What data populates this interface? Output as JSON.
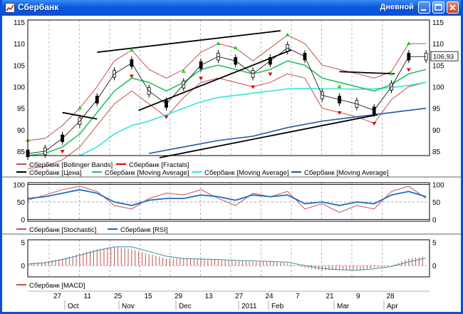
{
  "window": {
    "title": "Сбербанк",
    "period": "Дневной"
  },
  "panels": {
    "price": {
      "y_ticks": [
        85,
        90,
        95,
        100,
        105,
        110,
        115
      ],
      "y_range": [
        84,
        115.5
      ],
      "last_price": "106,93"
    },
    "stochastic_rsi": {
      "y_ticks": [
        0,
        50,
        100
      ]
    },
    "macd": {
      "y_ticks": [
        0,
        5
      ]
    }
  },
  "legend": {
    "row1": [
      {
        "label": "Сбербанк [Bollinger Bands]",
        "color": "#c0504d"
      },
      {
        "label": "Сбербанк [Fractals]",
        "color": "#e00000"
      }
    ],
    "row2": [
      {
        "label": "Сбербанк [Цена]",
        "color": "#000000"
      },
      {
        "label": "Сбербанк [Moving Average]",
        "color": "#26c060"
      },
      {
        "label": "Сбербанк [Moving Average]",
        "color": "#33e6d9"
      },
      {
        "label": "Сбербанк [Moving Average]",
        "color": "#1e5aa0"
      }
    ],
    "osc": [
      {
        "label": "Сбербанк [Stochastic]",
        "color": "#c0504d"
      },
      {
        "label": "Сбербанк [RSI]",
        "color": "#1f6fbf"
      }
    ],
    "macd": [
      {
        "label": "Сбербанк [MACD]",
        "color": "#c0504d"
      }
    ]
  },
  "x_axis": {
    "day_labels": [
      "27",
      "11",
      "25",
      "15",
      "29",
      "13",
      "27",
      "24",
      "7",
      "21",
      "9",
      "28"
    ],
    "month_labels": [
      "Oct",
      "Nov",
      "Dec",
      "2011",
      "Feb",
      "Mar",
      "Apr"
    ]
  },
  "chart_data": {
    "type": "line",
    "title": "",
    "series": [
      {
        "name": "Сбербанк [Цена]",
        "x": [
          0,
          5,
          10,
          15,
          20,
          25,
          30,
          35,
          40,
          45,
          50,
          55,
          60,
          65,
          70,
          75,
          80,
          85,
          90,
          95,
          100,
          105,
          110,
          115
        ],
        "values": [
          84.5,
          85,
          88,
          92,
          97,
          103,
          105.5,
          99,
          96,
          100.5,
          105,
          107,
          106,
          103,
          106,
          109,
          107,
          98,
          97,
          96,
          94.5,
          100,
          107,
          107
        ]
      },
      {
        "name": "Сбербанк [Moving Average]",
        "x": [
          0,
          5,
          10,
          15,
          20,
          25,
          30,
          35,
          40,
          45,
          50,
          55,
          60,
          65,
          70,
          75,
          80,
          85,
          90,
          95,
          100,
          105,
          110,
          115
        ],
        "values": [
          84,
          84.5,
          86,
          89,
          94,
          99,
          102,
          101,
          99,
          101,
          104,
          105,
          104,
          103,
          104,
          106,
          105,
          102,
          101,
          100,
          99,
          100.5,
          103,
          104
        ]
      },
      {
        "name": "Сбербанк [Moving Average]",
        "x": [
          15,
          20,
          25,
          30,
          35,
          40,
          45,
          50,
          55,
          60,
          65,
          70,
          75,
          80,
          85,
          90,
          95,
          100,
          105,
          110,
          115
        ],
        "values": [
          84,
          86,
          89,
          91,
          92,
          93.5,
          95,
          96.5,
          97.5,
          98,
          98.5,
          99,
          99.5,
          99.6,
          99.5,
          99.5,
          99.4,
          99.5,
          99.8,
          100.3,
          101
        ]
      },
      {
        "name": "Сбербанк [Moving Average]",
        "x": [
          35,
          45,
          55,
          65,
          75,
          85,
          95,
          105,
          115
        ],
        "values": [
          84.5,
          86,
          87.5,
          88.5,
          90.5,
          92,
          93,
          94,
          95
        ]
      }
    ],
    "trendlines": [
      {
        "x": [
          20,
          73
        ],
        "values": [
          108,
          113
        ]
      },
      {
        "x": [
          32,
          76
        ],
        "values": [
          94.5,
          108.5
        ]
      },
      {
        "x": [
          38,
          101
        ],
        "values": [
          83.5,
          93.5
        ]
      },
      {
        "x": [
          10,
          20
        ],
        "values": [
          94,
          92.5
        ]
      },
      {
        "x": [
          90,
          106
        ],
        "values": [
          103.5,
          103
        ]
      }
    ],
    "oscillators": {
      "x": [
        0,
        5,
        10,
        15,
        20,
        25,
        30,
        35,
        40,
        45,
        50,
        55,
        60,
        65,
        70,
        75,
        80,
        85,
        90,
        95,
        100,
        105,
        110,
        115
      ],
      "stochastic": [
        55,
        70,
        85,
        95,
        80,
        40,
        30,
        60,
        75,
        70,
        85,
        60,
        40,
        75,
        65,
        80,
        30,
        45,
        20,
        40,
        30,
        80,
        95,
        60
      ],
      "rsi": [
        60,
        65,
        75,
        85,
        75,
        50,
        40,
        55,
        60,
        60,
        70,
        65,
        55,
        70,
        65,
        70,
        45,
        50,
        40,
        50,
        45,
        70,
        80,
        65
      ]
    },
    "macd": {
      "x": [
        0,
        5,
        10,
        15,
        20,
        25,
        30,
        35,
        40,
        45,
        50,
        55,
        60,
        65,
        70,
        75,
        80,
        85,
        90,
        95,
        100,
        105,
        110,
        115
      ],
      "histogram": [
        0.5,
        0.8,
        1.5,
        2.5,
        3.5,
        4,
        3.5,
        2.5,
        1.5,
        1.5,
        1.5,
        1.2,
        1,
        0.8,
        0.8,
        0.5,
        -0.5,
        -1,
        -1,
        -1,
        -0.5,
        0,
        1.5,
        2
      ],
      "signal": [
        0.3,
        0.6,
        1.3,
        2.2,
        3.2,
        4,
        4,
        3,
        2,
        1.5,
        1.4,
        1.3,
        1.1,
        1,
        0.9,
        0.7,
        0,
        -0.6,
        -0.9,
        -1,
        -0.7,
        -0.2,
        0.8,
        1.6
      ]
    }
  }
}
